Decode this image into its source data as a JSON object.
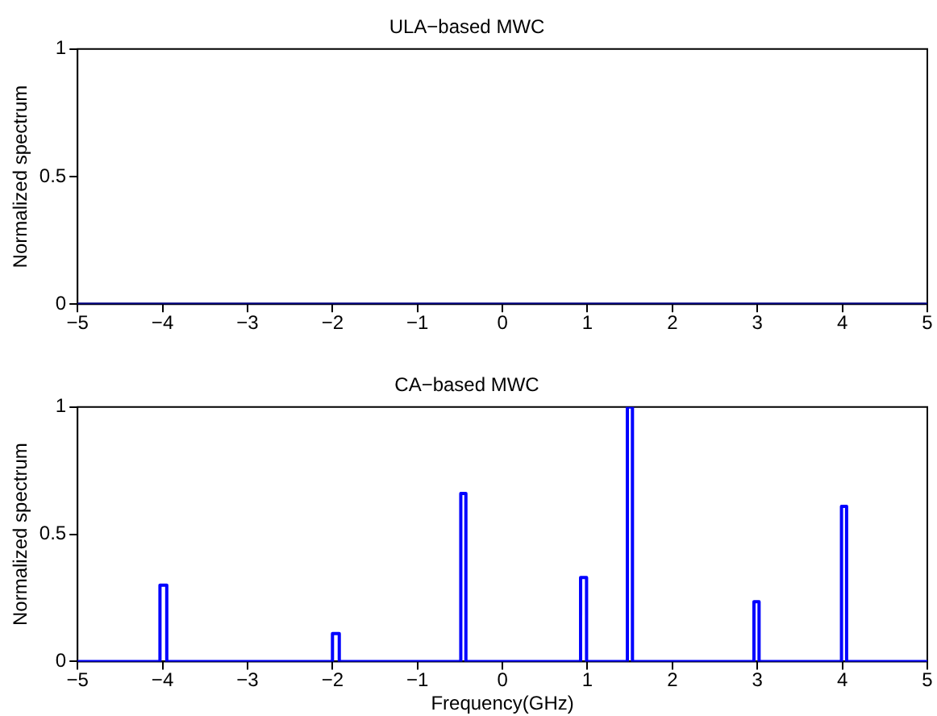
{
  "chart_data": [
    {
      "type": "line",
      "title": "ULA−based MWC",
      "ylabel": "Normalized spectrum",
      "xlim": [
        -5,
        5
      ],
      "xticks": [
        -5,
        -4,
        -3,
        -2,
        -1,
        0,
        1,
        2,
        3,
        4,
        5
      ],
      "ylim": [
        0,
        1
      ],
      "yticks": [
        0,
        0.5,
        1
      ],
      "grid": false,
      "legend": false,
      "marker": "none",
      "line_style": "solid",
      "series": [
        {
          "color": "#000080",
          "x": [
            -5,
            5
          ],
          "values": [
            0,
            0
          ]
        }
      ]
    },
    {
      "type": "line",
      "title": "CA−based MWC",
      "xlabel": "Frequency(GHz)",
      "ylabel": "Normalized spectrum",
      "xlim": [
        -5,
        5
      ],
      "xticks": [
        -5,
        -4,
        -3,
        -2,
        -1,
        0,
        1,
        2,
        3,
        4,
        5
      ],
      "ylim": [
        0,
        1
      ],
      "yticks": [
        0,
        0.5,
        1
      ],
      "grid": false,
      "legend": false,
      "marker": "none",
      "line_style": "solid",
      "series": [
        {
          "color": "#0000ff",
          "x": [
            -5,
            -4.03,
            -4.03,
            -3.95,
            -3.95,
            -2,
            -2,
            -1.92,
            -1.92,
            -0.49,
            -0.49,
            -0.43,
            -0.43,
            0.92,
            0.92,
            0.99,
            0.99,
            1.47,
            1.47,
            1.53,
            1.53,
            2.96,
            2.96,
            3.02,
            3.02,
            3.99,
            3.99,
            4.05,
            4.05,
            5
          ],
          "values": [
            0,
            0,
            0.3,
            0.3,
            0,
            0,
            0.11,
            0.11,
            0,
            0,
            0.66,
            0.66,
            0,
            0,
            0.33,
            0.33,
            0,
            0,
            1,
            1,
            0,
            0,
            0.235,
            0.235,
            0,
            0,
            0.61,
            0.61,
            0,
            0
          ]
        }
      ]
    }
  ]
}
